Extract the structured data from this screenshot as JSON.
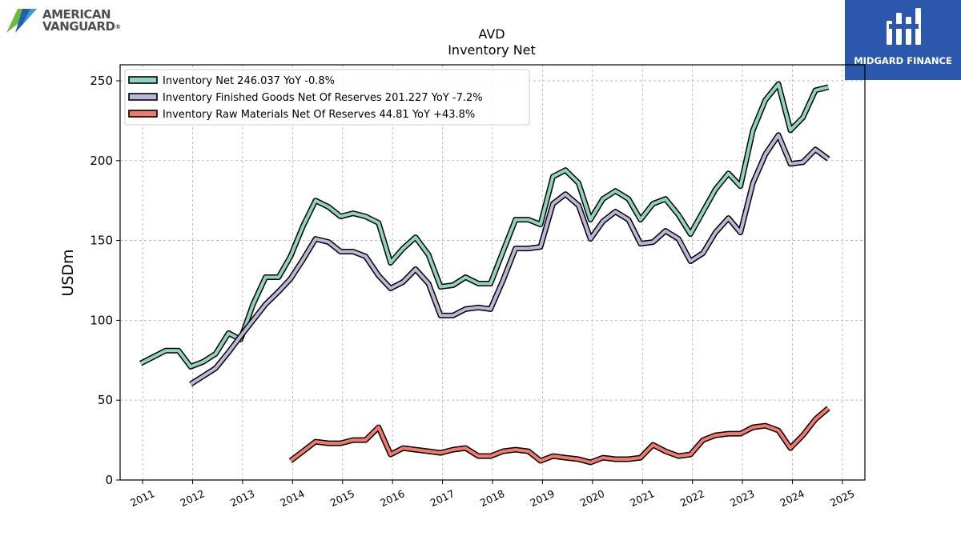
{
  "header": {
    "left_logo_line1": "AMERICAN",
    "left_logo_line2": "VANGUARD",
    "left_logo_mark": "®",
    "right_logo_text": "MIDGARD FINANCE"
  },
  "colors": {
    "inventory_net": "#8fd3c1",
    "finished_goods": "#bcb7d9",
    "raw_materials": "#f3796d",
    "outline": "#000000",
    "brand_blue": "#2b58ad"
  },
  "chart_data": {
    "type": "line",
    "title": "AVD",
    "subtitle": "Inventory Net",
    "xlabel": "",
    "ylabel": "USDm",
    "xlim": [
      2010.55,
      2025.45
    ],
    "ylim": [
      0,
      260
    ],
    "x_ticks": [
      "2011",
      "2012",
      "2013",
      "2014",
      "2015",
      "2016",
      "2017",
      "2018",
      "2019",
      "2020",
      "2021",
      "2022",
      "2023",
      "2024",
      "2025"
    ],
    "y_ticks": [
      "0",
      "50",
      "100",
      "150",
      "200",
      "250"
    ],
    "grid": true,
    "legend_position": "top-left",
    "series": [
      {
        "name": "Inventory Net  246.037 YoY -0.8%",
        "color": "#8fd3c1",
        "points": [
          [
            2010.96,
            73
          ],
          [
            2011.21,
            77
          ],
          [
            2011.46,
            81
          ],
          [
            2011.72,
            81
          ],
          [
            2011.96,
            71
          ],
          [
            2012.21,
            74
          ],
          [
            2012.46,
            79
          ],
          [
            2012.72,
            92
          ],
          [
            2012.96,
            88
          ],
          [
            2013.21,
            110
          ],
          [
            2013.46,
            127
          ],
          [
            2013.72,
            127
          ],
          [
            2013.96,
            140
          ],
          [
            2014.21,
            159
          ],
          [
            2014.46,
            175
          ],
          [
            2014.72,
            171
          ],
          [
            2014.96,
            165
          ],
          [
            2015.21,
            167
          ],
          [
            2015.46,
            165
          ],
          [
            2015.72,
            161
          ],
          [
            2015.96,
            136
          ],
          [
            2016.21,
            145
          ],
          [
            2016.46,
            152
          ],
          [
            2016.72,
            141
          ],
          [
            2016.96,
            121
          ],
          [
            2017.21,
            122
          ],
          [
            2017.46,
            127
          ],
          [
            2017.72,
            123
          ],
          [
            2017.96,
            123
          ],
          [
            2018.21,
            143
          ],
          [
            2018.46,
            163
          ],
          [
            2018.72,
            163
          ],
          [
            2018.96,
            160
          ],
          [
            2019.21,
            190
          ],
          [
            2019.46,
            194
          ],
          [
            2019.72,
            186
          ],
          [
            2019.96,
            163
          ],
          [
            2020.21,
            176
          ],
          [
            2020.46,
            181
          ],
          [
            2020.72,
            176
          ],
          [
            2020.96,
            163
          ],
          [
            2021.21,
            173
          ],
          [
            2021.46,
            176
          ],
          [
            2021.72,
            166
          ],
          [
            2021.96,
            154
          ],
          [
            2022.21,
            168
          ],
          [
            2022.46,
            182
          ],
          [
            2022.72,
            192
          ],
          [
            2022.96,
            184
          ],
          [
            2023.21,
            219
          ],
          [
            2023.46,
            238
          ],
          [
            2023.72,
            248
          ],
          [
            2023.96,
            219
          ],
          [
            2024.21,
            227
          ],
          [
            2024.46,
            244
          ],
          [
            2024.72,
            246
          ]
        ]
      },
      {
        "name": "Inventory Finished Goods Net Of Reserves  201.227 YoY -7.2%",
        "color": "#bcb7d9",
        "points": [
          [
            2011.96,
            60
          ],
          [
            2012.21,
            65
          ],
          [
            2012.46,
            70
          ],
          [
            2012.72,
            80
          ],
          [
            2012.96,
            90
          ],
          [
            2013.21,
            100
          ],
          [
            2013.46,
            110
          ],
          [
            2013.72,
            118
          ],
          [
            2013.96,
            126
          ],
          [
            2014.21,
            138
          ],
          [
            2014.46,
            151
          ],
          [
            2014.72,
            149
          ],
          [
            2014.96,
            143
          ],
          [
            2015.21,
            143
          ],
          [
            2015.46,
            140
          ],
          [
            2015.72,
            128
          ],
          [
            2015.96,
            120
          ],
          [
            2016.21,
            124
          ],
          [
            2016.46,
            132
          ],
          [
            2016.72,
            123
          ],
          [
            2016.96,
            103
          ],
          [
            2017.21,
            103
          ],
          [
            2017.46,
            107
          ],
          [
            2017.72,
            108
          ],
          [
            2017.96,
            107
          ],
          [
            2018.21,
            125
          ],
          [
            2018.46,
            145
          ],
          [
            2018.72,
            145
          ],
          [
            2018.96,
            146
          ],
          [
            2019.21,
            173
          ],
          [
            2019.46,
            179
          ],
          [
            2019.72,
            172
          ],
          [
            2019.96,
            151
          ],
          [
            2020.21,
            162
          ],
          [
            2020.46,
            168
          ],
          [
            2020.72,
            163
          ],
          [
            2020.96,
            148
          ],
          [
            2021.21,
            149
          ],
          [
            2021.46,
            156
          ],
          [
            2021.72,
            151
          ],
          [
            2021.96,
            137
          ],
          [
            2022.21,
            142
          ],
          [
            2022.46,
            155
          ],
          [
            2022.72,
            164
          ],
          [
            2022.96,
            155
          ],
          [
            2023.21,
            186
          ],
          [
            2023.46,
            204
          ],
          [
            2023.72,
            216
          ],
          [
            2023.96,
            198
          ],
          [
            2024.21,
            199
          ],
          [
            2024.46,
            207
          ],
          [
            2024.72,
            201
          ]
        ]
      },
      {
        "name": "Inventory Raw Materials Net Of Reserves  44.81 YoY +43.8%",
        "color": "#f3796d",
        "points": [
          [
            2013.96,
            12
          ],
          [
            2014.21,
            18
          ],
          [
            2014.46,
            24
          ],
          [
            2014.72,
            23
          ],
          [
            2014.96,
            23
          ],
          [
            2015.21,
            25
          ],
          [
            2015.46,
            25
          ],
          [
            2015.72,
            33
          ],
          [
            2015.96,
            16
          ],
          [
            2016.21,
            20
          ],
          [
            2016.46,
            19
          ],
          [
            2016.72,
            18
          ],
          [
            2016.96,
            17
          ],
          [
            2017.21,
            19
          ],
          [
            2017.46,
            20
          ],
          [
            2017.72,
            15
          ],
          [
            2017.96,
            15
          ],
          [
            2018.21,
            18
          ],
          [
            2018.46,
            19
          ],
          [
            2018.72,
            18
          ],
          [
            2018.96,
            12
          ],
          [
            2019.21,
            15
          ],
          [
            2019.46,
            14
          ],
          [
            2019.72,
            13
          ],
          [
            2019.96,
            11
          ],
          [
            2020.21,
            14
          ],
          [
            2020.46,
            13
          ],
          [
            2020.72,
            13
          ],
          [
            2020.96,
            14
          ],
          [
            2021.21,
            22
          ],
          [
            2021.46,
            18
          ],
          [
            2021.72,
            15
          ],
          [
            2021.96,
            16
          ],
          [
            2022.21,
            25
          ],
          [
            2022.46,
            28
          ],
          [
            2022.72,
            29
          ],
          [
            2022.96,
            29
          ],
          [
            2023.21,
            33
          ],
          [
            2023.46,
            34
          ],
          [
            2023.72,
            31
          ],
          [
            2023.96,
            20
          ],
          [
            2024.21,
            28
          ],
          [
            2024.46,
            38
          ],
          [
            2024.72,
            45
          ]
        ]
      }
    ]
  }
}
